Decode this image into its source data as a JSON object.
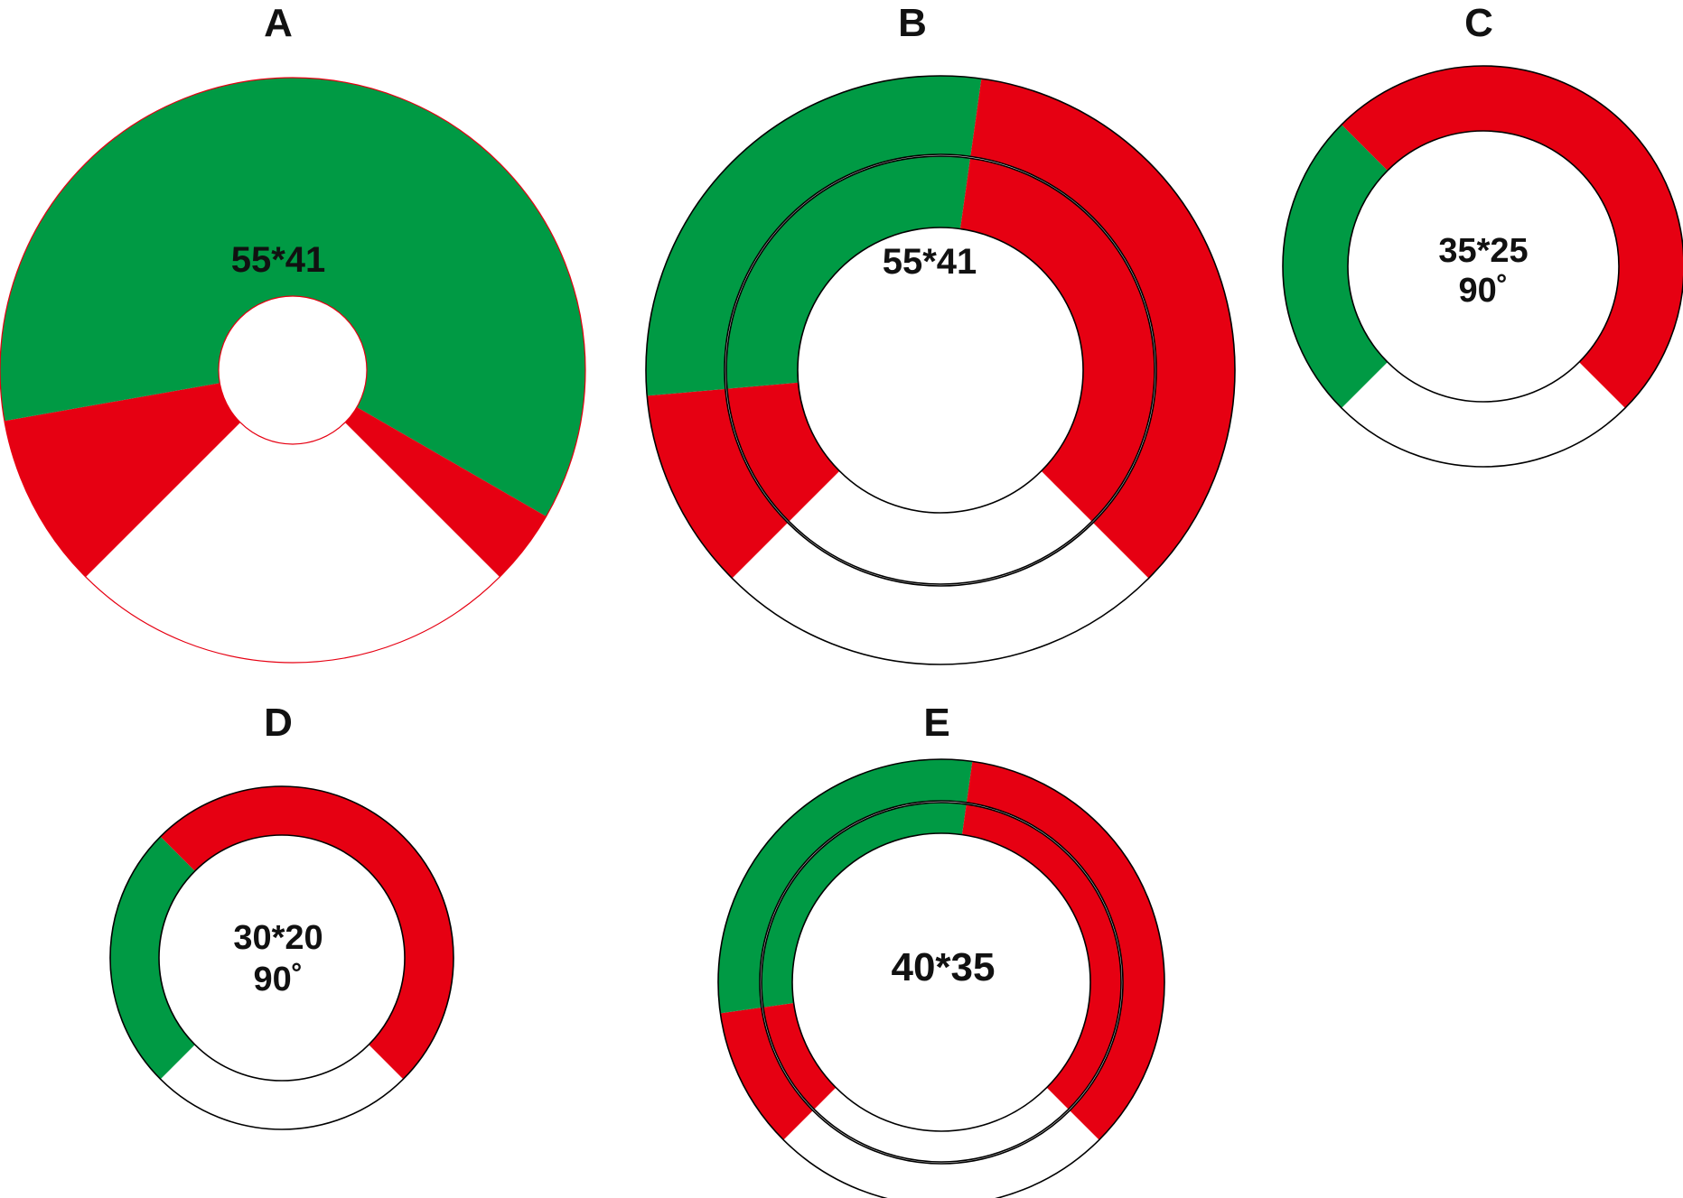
{
  "colors": {
    "green": "#009a44",
    "red": "#e60012",
    "outline": "#000000",
    "thin_red": "#e60012",
    "text": "#111111"
  },
  "panels": [
    {
      "id": "A",
      "label": "A",
      "center_lines": [
        "55*41"
      ],
      "outline_color": "#e60012",
      "rings": [
        {
          "segments": [
            {
              "color": "red",
              "from": 225,
              "to": 260
            },
            {
              "color": "green",
              "from": 260,
              "to": 480
            },
            {
              "color": "red",
              "from": 480,
              "to": 495
            }
          ]
        }
      ]
    },
    {
      "id": "B",
      "label": "B",
      "center_lines": [
        "55*41"
      ],
      "outline_color": "#000000",
      "rings": [
        {
          "segments": [
            {
              "color": "red",
              "from": 225,
              "to": 265
            },
            {
              "color": "green",
              "from": 265,
              "to": 368
            },
            {
              "color": "red",
              "from": 368,
              "to": 495
            }
          ]
        },
        {
          "segments": [
            {
              "color": "red",
              "from": 225,
              "to": 265
            },
            {
              "color": "green",
              "from": 265,
              "to": 368
            },
            {
              "color": "red",
              "from": 368,
              "to": 495
            }
          ]
        }
      ]
    },
    {
      "id": "C",
      "label": "C",
      "center_lines": [
        "35*25",
        "90˚"
      ],
      "outline_color": "#000000",
      "rings": [
        {
          "segments": [
            {
              "color": "green",
              "from": 225,
              "to": 315
            },
            {
              "color": "red",
              "from": 315,
              "to": 495
            }
          ]
        }
      ]
    },
    {
      "id": "D",
      "label": "D",
      "center_lines": [
        "30*20",
        "90˚"
      ],
      "outline_color": "#000000",
      "rings": [
        {
          "segments": [
            {
              "color": "green",
              "from": 225,
              "to": 315
            },
            {
              "color": "red",
              "from": 315,
              "to": 495
            }
          ]
        }
      ]
    },
    {
      "id": "E",
      "label": "E",
      "center_lines": [
        "40*35"
      ],
      "outline_color": "#000000",
      "rings": [
        {
          "segments": [
            {
              "color": "red",
              "from": 225,
              "to": 262
            },
            {
              "color": "green",
              "from": 262,
              "to": 368
            },
            {
              "color": "red",
              "from": 368,
              "to": 495
            }
          ]
        },
        {
          "segments": [
            {
              "color": "red",
              "from": 225,
              "to": 262
            },
            {
              "color": "green",
              "from": 262,
              "to": 368
            },
            {
              "color": "red",
              "from": 368,
              "to": 495
            }
          ]
        }
      ]
    }
  ]
}
